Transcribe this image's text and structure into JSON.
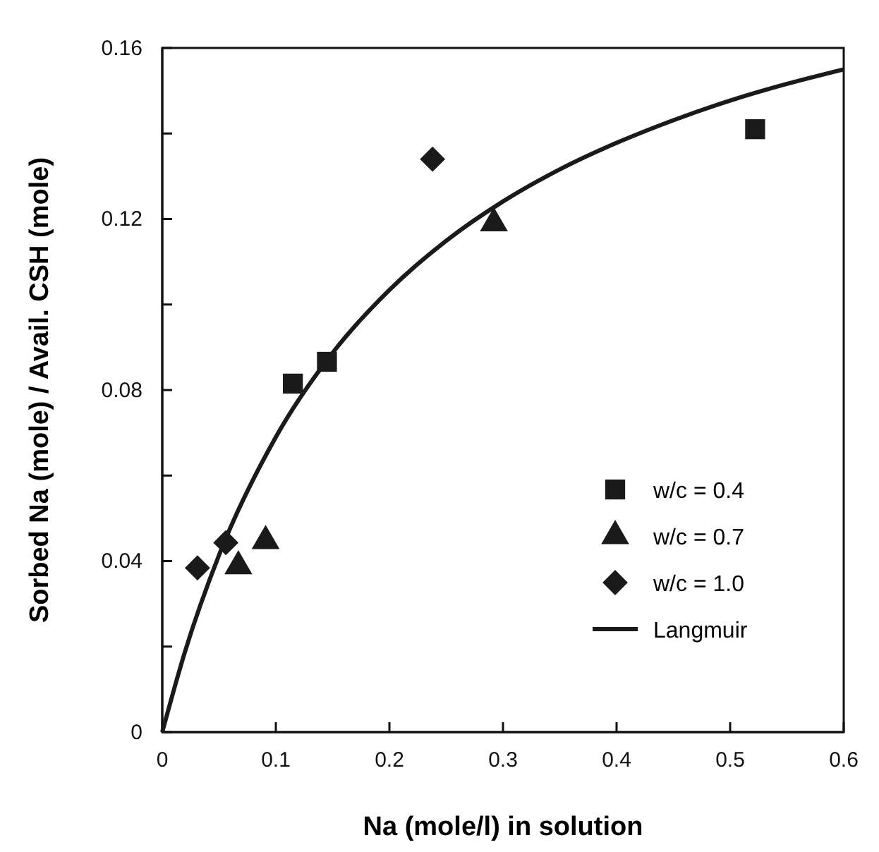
{
  "chart_data": {
    "type": "scatter",
    "xlabel": "Na (mole/l) in solution",
    "ylabel": "Sorbed Na (mole) / Avail. CSH (mole)",
    "xlim": [
      0,
      0.6
    ],
    "xticks": [
      0,
      0.1,
      0.2,
      0.3,
      0.4,
      0.5,
      0.6
    ],
    "ylim": [
      0,
      0.16
    ],
    "yticks": [
      0,
      {
        "value": 0.02,
        "label": null
      },
      0.04,
      {
        "value": 0.06,
        "label": null
      },
      0.08,
      {
        "value": 0.1,
        "label": null
      },
      0.12,
      {
        "value": 0.14,
        "label": null
      },
      0.16
    ],
    "grid": false,
    "legend": "bottom right",
    "series": [
      {
        "name": "w/c = 0.4",
        "marker": "square",
        "color": "#1a1a1a",
        "x": [
          0.115,
          0.145,
          0.522
        ],
        "values": [
          0.0815,
          0.0866,
          0.141
        ]
      },
      {
        "name": "w/c = 0.7",
        "marker": "triangle",
        "color": "#1a1a1a",
        "x": [
          0.067,
          0.091,
          0.292
        ],
        "values": [
          0.0388,
          0.0447,
          0.119
        ]
      },
      {
        "name": "w/c = 1.0",
        "marker": "diamond",
        "color": "#1a1a1a",
        "x": [
          0.031,
          0.056,
          0.238
        ],
        "values": [
          0.0384,
          0.0443,
          0.134
        ]
      },
      {
        "name": "Langmuir",
        "type": "line",
        "marker": "none",
        "line_style": "solid",
        "color": "#1a1a1a",
        "x": [
          0,
          0.02,
          0.05,
          0.1,
          0.15,
          0.2,
          0.25,
          0.3,
          0.35,
          0.4,
          0.45,
          0.5,
          0.55,
          0.6
        ],
        "values": [
          0,
          0.0188,
          0.0414,
          0.069,
          0.0887,
          0.1034,
          0.1149,
          0.1241,
          0.1316,
          0.1378,
          0.1431,
          0.1477,
          0.1516,
          0.155
        ]
      }
    ]
  }
}
